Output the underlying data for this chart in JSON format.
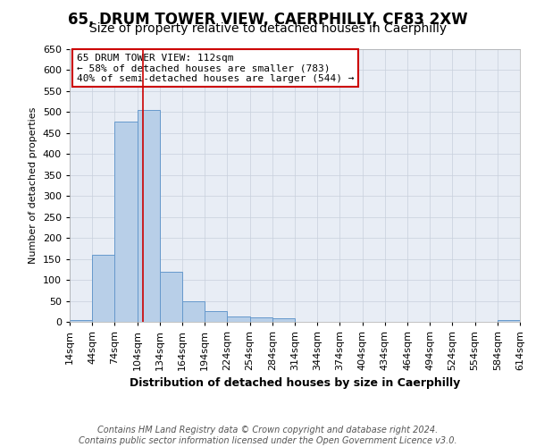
{
  "title": "65, DRUM TOWER VIEW, CAERPHILLY, CF83 2XW",
  "subtitle": "Size of property relative to detached houses in Caerphilly",
  "xlabel": "Distribution of detached houses by size in Caerphilly",
  "ylabel": "Number of detached properties",
  "bin_edges": [
    14,
    44,
    74,
    104,
    134,
    164,
    194,
    224,
    254,
    284,
    314,
    344,
    374,
    404,
    434,
    464,
    494,
    524,
    554,
    584,
    614
  ],
  "bin_values": [
    5,
    160,
    478,
    505,
    120,
    50,
    25,
    13,
    10,
    8,
    0,
    0,
    0,
    0,
    0,
    0,
    0,
    0,
    0,
    5
  ],
  "bar_color": "#b8cfe8",
  "bar_edge_color": "#6699cc",
  "vline_x": 112,
  "vline_color": "#cc0000",
  "annotation_text": "65 DRUM TOWER VIEW: 112sqm\n← 58% of detached houses are smaller (783)\n40% of semi-detached houses are larger (544) →",
  "annotation_box_facecolor": "white",
  "annotation_box_edgecolor": "#cc0000",
  "ylim": [
    0,
    650
  ],
  "yticks": [
    0,
    50,
    100,
    150,
    200,
    250,
    300,
    350,
    400,
    450,
    500,
    550,
    600,
    650
  ],
  "footer_line1": "Contains HM Land Registry data © Crown copyright and database right 2024.",
  "footer_line2": "Contains public sector information licensed under the Open Government Licence v3.0.",
  "fig_facecolor": "#ffffff",
  "plot_facecolor": "#e8edf5",
  "grid_color": "#c8d0dc",
  "title_fontsize": 12,
  "subtitle_fontsize": 10,
  "xlabel_fontsize": 9,
  "ylabel_fontsize": 8,
  "tick_fontsize": 8,
  "annotation_fontsize": 8,
  "footer_fontsize": 7
}
